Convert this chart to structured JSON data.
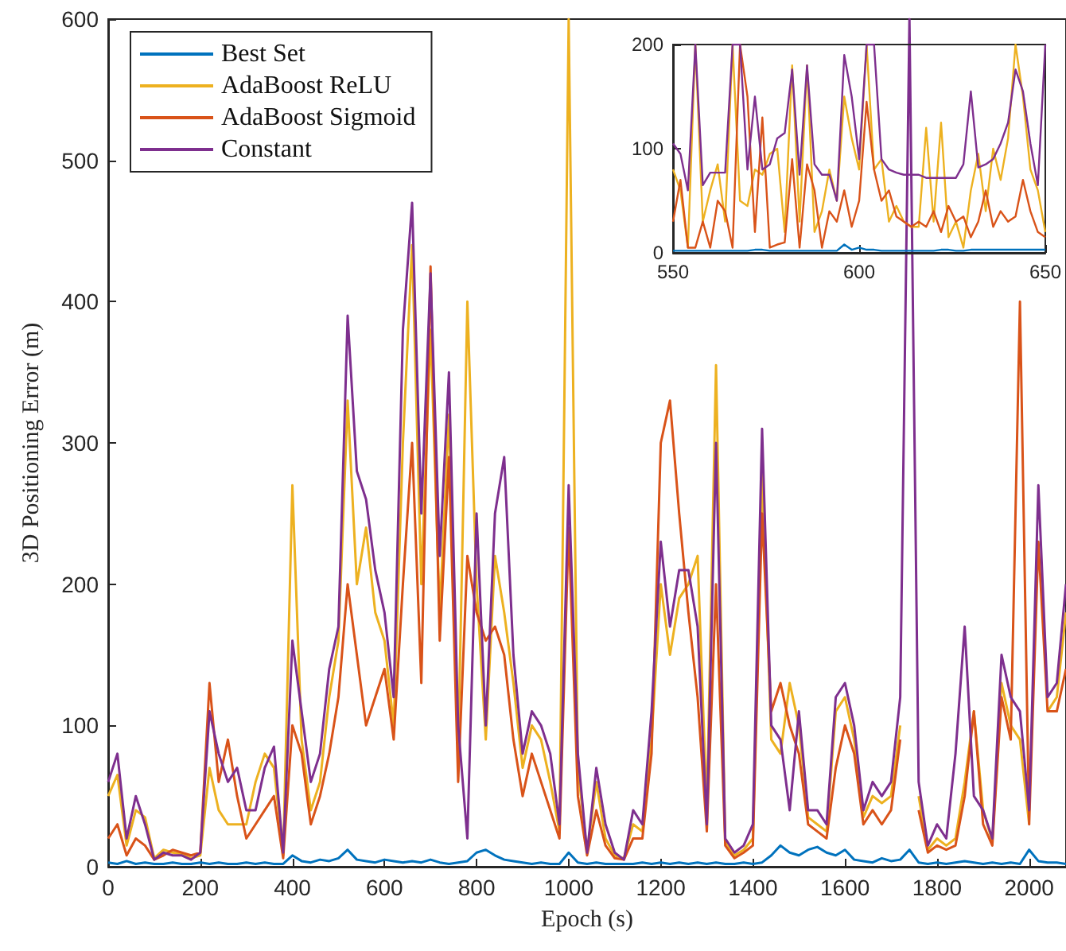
{
  "chart_data": [
    {
      "type": "line",
      "xlabel": "Epoch (s)",
      "ylabel": "3D Positioning Error (m)",
      "xlim": [
        0,
        2080
      ],
      "xticks": [
        0,
        200,
        400,
        600,
        800,
        1000,
        1200,
        1400,
        1600,
        1800,
        2000
      ],
      "ylim": [
        0,
        600
      ],
      "yticks": [
        0,
        100,
        200,
        300,
        400,
        500,
        600
      ],
      "grid": false,
      "legend": "top left",
      "marker": "none",
      "line_style": "solid",
      "x": [
        0,
        20,
        40,
        60,
        80,
        100,
        120,
        140,
        160,
        180,
        200,
        220,
        240,
        260,
        280,
        300,
        320,
        340,
        360,
        380,
        400,
        420,
        440,
        460,
        480,
        500,
        520,
        540,
        560,
        580,
        600,
        620,
        640,
        660,
        680,
        700,
        720,
        740,
        760,
        780,
        800,
        820,
        840,
        860,
        880,
        900,
        920,
        940,
        960,
        980,
        1000,
        1020,
        1040,
        1060,
        1080,
        1100,
        1120,
        1140,
        1160,
        1180,
        1200,
        1220,
        1240,
        1260,
        1280,
        1300,
        1320,
        1340,
        1360,
        1380,
        1400,
        1420,
        1440,
        1460,
        1480,
        1500,
        1520,
        1540,
        1560,
        1580,
        1600,
        1620,
        1640,
        1660,
        1680,
        1700,
        1720,
        1740,
        1760,
        1780,
        1800,
        1820,
        1840,
        1860,
        1880,
        1900,
        1920,
        1940,
        1960,
        1980,
        2000,
        2020,
        2040,
        2060,
        2080
      ],
      "series": [
        {
          "name": "Best Set",
          "color": "#0072bd",
          "values": [
            3,
            2,
            4,
            2,
            3,
            2,
            2,
            3,
            2,
            2,
            3,
            2,
            3,
            2,
            2,
            3,
            2,
            3,
            2,
            2,
            8,
            4,
            3,
            5,
            4,
            6,
            12,
            5,
            4,
            3,
            5,
            4,
            3,
            4,
            3,
            5,
            3,
            2,
            3,
            4,
            10,
            12,
            8,
            5,
            4,
            3,
            2,
            3,
            2,
            2,
            10,
            3,
            2,
            3,
            2,
            2,
            2,
            2,
            3,
            2,
            3,
            2,
            3,
            2,
            3,
            2,
            3,
            2,
            2,
            3,
            2,
            3,
            8,
            15,
            10,
            8,
            12,
            14,
            10,
            8,
            12,
            5,
            4,
            3,
            6,
            4,
            5,
            12,
            3,
            2,
            3,
            2,
            3,
            4,
            3,
            2,
            3,
            2,
            3,
            2,
            12,
            4,
            3,
            3,
            2
          ]
        },
        {
          "name": "AdaBoost ReLU",
          "color": "#edb120",
          "values": [
            50,
            65,
            15,
            40,
            35,
            6,
            12,
            10,
            9,
            6,
            8,
            70,
            40,
            30,
            30,
            30,
            60,
            80,
            70,
            8,
            270,
            90,
            40,
            60,
            120,
            160,
            330,
            200,
            240,
            180,
            160,
            100,
            300,
            440,
            200,
            380,
            180,
            320,
            80,
            400,
            200,
            90,
            220,
            180,
            130,
            70,
            100,
            90,
            60,
            25,
            600,
            70,
            10,
            60,
            20,
            8,
            6,
            30,
            25,
            90,
            200,
            150,
            190,
            200,
            220,
            40,
            355,
            18,
            8,
            12,
            20,
            280,
            90,
            80,
            130,
            100,
            35,
            30,
            25,
            110,
            120,
            90,
            35,
            50,
            45,
            50,
            100,
            null,
            50,
            12,
            20,
            15,
            20,
            60,
            110,
            40,
            18,
            130,
            100,
            90,
            30,
            null,
            110,
            120,
            180
          ]
        },
        {
          "name": "AdaBoost Sigmoid",
          "color": "#d95319",
          "values": [
            20,
            30,
            8,
            20,
            15,
            5,
            8,
            12,
            10,
            8,
            10,
            130,
            60,
            90,
            50,
            20,
            30,
            40,
            50,
            6,
            100,
            80,
            30,
            50,
            80,
            120,
            200,
            150,
            100,
            120,
            140,
            90,
            200,
            300,
            130,
            425,
            160,
            290,
            60,
            220,
            180,
            160,
            170,
            150,
            90,
            50,
            80,
            60,
            40,
            20,
            240,
            50,
            8,
            40,
            15,
            6,
            5,
            20,
            20,
            80,
            300,
            330,
            250,
            180,
            120,
            25,
            200,
            15,
            6,
            10,
            15,
            250,
            110,
            130,
            100,
            80,
            30,
            25,
            20,
            70,
            100,
            80,
            30,
            40,
            30,
            40,
            90,
            null,
            40,
            10,
            15,
            12,
            15,
            50,
            110,
            30,
            15,
            120,
            90,
            400,
            30,
            230,
            110,
            110,
            140
          ]
        },
        {
          "name": "Constant",
          "color": "#7e2f8e",
          "values": [
            60,
            80,
            20,
            50,
            30,
            5,
            10,
            8,
            8,
            5,
            10,
            110,
            80,
            60,
            70,
            40,
            40,
            70,
            85,
            10,
            160,
            110,
            60,
            80,
            140,
            170,
            390,
            280,
            260,
            210,
            180,
            120,
            380,
            470,
            250,
            420,
            220,
            350,
            100,
            20,
            250,
            100,
            250,
            290,
            150,
            80,
            110,
            100,
            80,
            30,
            270,
            80,
            10,
            70,
            30,
            10,
            5,
            40,
            30,
            110,
            230,
            170,
            210,
            210,
            170,
            30,
            300,
            20,
            10,
            15,
            30,
            310,
            100,
            90,
            40,
            110,
            40,
            40,
            30,
            120,
            130,
            100,
            40,
            60,
            50,
            60,
            120,
            600,
            60,
            15,
            30,
            20,
            80,
            170,
            50,
            40,
            20,
            150,
            120,
            110,
            40,
            270,
            120,
            130,
            200
          ]
        }
      ]
    },
    {
      "type": "line",
      "xlim": [
        550,
        650
      ],
      "xticks": [
        550,
        600,
        650
      ],
      "ylim": [
        0,
        200
      ],
      "yticks": [
        0,
        100,
        200
      ],
      "grid": false,
      "legend": false,
      "marker": "none",
      "line_style": "solid",
      "x": [
        550,
        552,
        554,
        556,
        558,
        560,
        562,
        564,
        566,
        568,
        570,
        572,
        574,
        576,
        578,
        580,
        582,
        584,
        586,
        588,
        590,
        592,
        594,
        596,
        598,
        600,
        602,
        604,
        606,
        608,
        610,
        612,
        614,
        616,
        618,
        620,
        622,
        624,
        626,
        628,
        630,
        632,
        634,
        636,
        638,
        640,
        642,
        644,
        646,
        648,
        650
      ],
      "series": [
        {
          "color": "#0072bd",
          "values": [
            2,
            2,
            2,
            2,
            2,
            2,
            2,
            2,
            2,
            2,
            2,
            3,
            3,
            2,
            2,
            2,
            2,
            2,
            2,
            2,
            2,
            2,
            2,
            8,
            3,
            5,
            3,
            3,
            2,
            2,
            2,
            2,
            2,
            2,
            2,
            2,
            3,
            3,
            2,
            2,
            3,
            3,
            3,
            3,
            3,
            3,
            3,
            3,
            3,
            3,
            3
          ]
        },
        {
          "color": "#edb120",
          "values": [
            80,
            60,
            5,
            200,
            30,
            60,
            85,
            30,
            200,
            50,
            45,
            80,
            75,
            95,
            100,
            20,
            180,
            30,
            180,
            20,
            40,
            80,
            50,
            150,
            110,
            80,
            200,
            80,
            90,
            30,
            45,
            30,
            25,
            25,
            120,
            30,
            125,
            15,
            30,
            5,
            60,
            95,
            40,
            100,
            70,
            110,
            200,
            150,
            80,
            60,
            20
          ]
        },
        {
          "color": "#d95319",
          "values": [
            30,
            70,
            5,
            5,
            30,
            5,
            50,
            40,
            5,
            200,
            150,
            20,
            130,
            5,
            8,
            10,
            90,
            5,
            85,
            60,
            5,
            40,
            30,
            60,
            25,
            50,
            145,
            80,
            50,
            60,
            35,
            30,
            25,
            30,
            25,
            40,
            20,
            45,
            30,
            35,
            15,
            30,
            60,
            25,
            40,
            30,
            35,
            70,
            40,
            20,
            15
          ]
        },
        {
          "color": "#7e2f8e",
          "values": [
            105,
            95,
            60,
            200,
            65,
            77,
            77,
            77,
            200,
            200,
            80,
            150,
            80,
            85,
            110,
            115,
            176,
            75,
            180,
            85,
            75,
            75,
            50,
            190,
            150,
            90,
            200,
            200,
            90,
            80,
            77,
            75,
            75,
            75,
            72,
            72,
            72,
            72,
            72,
            85,
            155,
            82,
            85,
            90,
            105,
            125,
            176,
            155,
            105,
            65,
            200
          ]
        }
      ]
    }
  ]
}
